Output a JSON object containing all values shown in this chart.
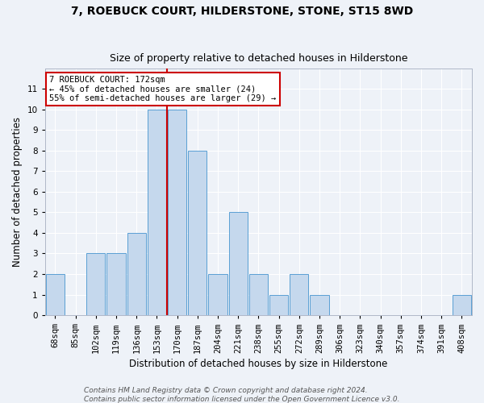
{
  "title1": "7, ROEBUCK COURT, HILDERSTONE, STONE, ST15 8WD",
  "title2": "Size of property relative to detached houses in Hilderstone",
  "xlabel": "Distribution of detached houses by size in Hilderstone",
  "ylabel": "Number of detached properties",
  "footer1": "Contains HM Land Registry data © Crown copyright and database right 2024.",
  "footer2": "Contains public sector information licensed under the Open Government Licence v3.0.",
  "categories": [
    "68sqm",
    "85sqm",
    "102sqm",
    "119sqm",
    "136sqm",
    "153sqm",
    "170sqm",
    "187sqm",
    "204sqm",
    "221sqm",
    "238sqm",
    "255sqm",
    "272sqm",
    "289sqm",
    "306sqm",
    "323sqm",
    "340sqm",
    "357sqm",
    "374sqm",
    "391sqm",
    "408sqm"
  ],
  "values": [
    2,
    0,
    3,
    3,
    4,
    10,
    10,
    8,
    2,
    5,
    2,
    1,
    2,
    1,
    0,
    0,
    0,
    0,
    0,
    0,
    1
  ],
  "bar_color": "#c5d8ed",
  "bar_edge_color": "#5a9fd4",
  "highlight_index": 6,
  "highlight_line_color": "#cc0000",
  "annotation_text": "7 ROEBUCK COURT: 172sqm\n← 45% of detached houses are smaller (24)\n55% of semi-detached houses are larger (29) →",
  "annotation_box_color": "#ffffff",
  "annotation_box_edge_color": "#cc0000",
  "ylim": [
    0,
    12
  ],
  "yticks": [
    0,
    1,
    2,
    3,
    4,
    5,
    6,
    7,
    8,
    9,
    10,
    11,
    12
  ],
  "background_color": "#eef2f8",
  "grid_color": "#ffffff",
  "title1_fontsize": 10,
  "title2_fontsize": 9,
  "xlabel_fontsize": 8.5,
  "ylabel_fontsize": 8.5,
  "tick_fontsize": 7.5,
  "footer_fontsize": 6.5
}
